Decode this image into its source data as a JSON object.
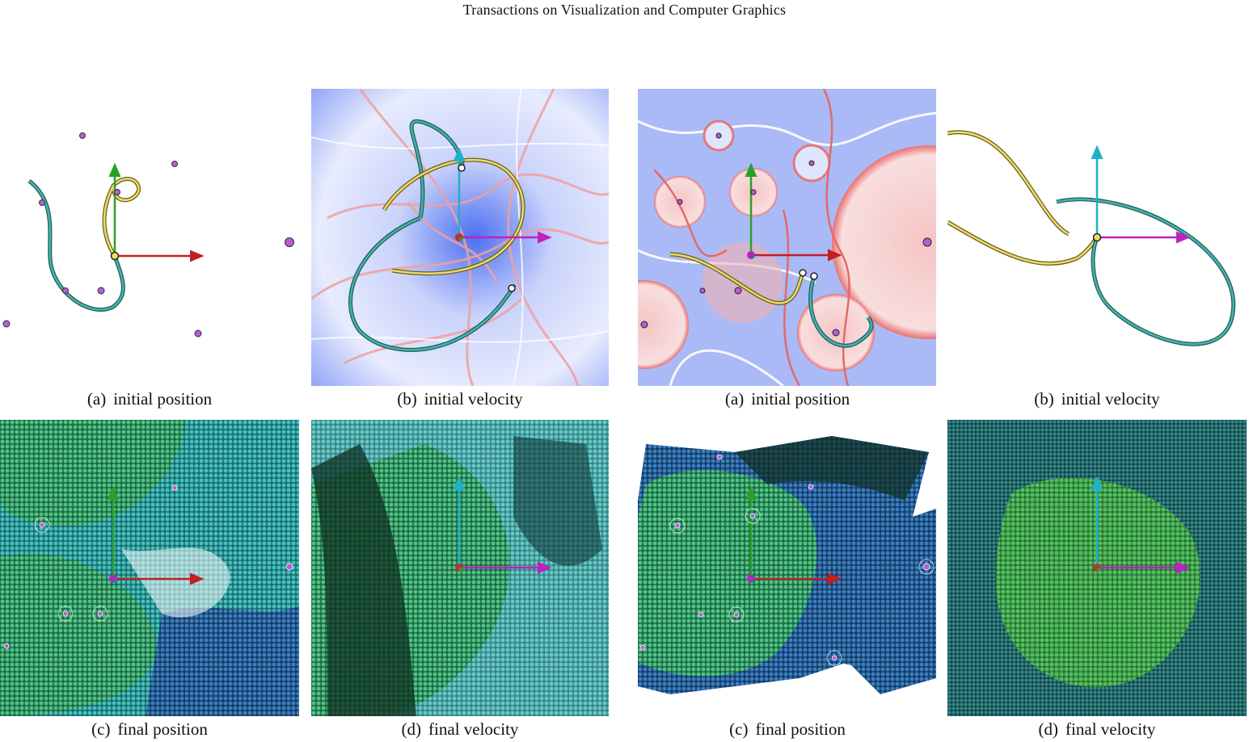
{
  "header": {
    "title": "Transactions on Visualization and Computer Graphics"
  },
  "figures": [
    {
      "panels": [
        {
          "label": "(a)",
          "text": "initial position"
        },
        {
          "label": "(b)",
          "text": "initial velocity"
        },
        {
          "label": "(c)",
          "text": "final position"
        },
        {
          "label": "(d)",
          "text": "final velocity"
        }
      ]
    },
    {
      "panels": [
        {
          "label": "(a)",
          "text": "initial position"
        },
        {
          "label": "(b)",
          "text": "initial velocity"
        },
        {
          "label": "(c)",
          "text": "final position"
        },
        {
          "label": "(d)",
          "text": "final velocity"
        }
      ]
    }
  ],
  "colors": {
    "curve_teal": "#2e8f8a",
    "curve_yellow": "#e9d76a",
    "field_blue": "#3a5fe0",
    "field_red": "#e27a7a",
    "particle_green": "#3fbf5a",
    "particle_teal": "#2aa3a0",
    "particle_blue": "#2a6fb0",
    "point_purple": "#b45fd6",
    "axis_red": "#c02020",
    "axis_green": "#2aa02a",
    "axis_cyan": "#20b0c8",
    "axis_magenta": "#c020c0"
  }
}
